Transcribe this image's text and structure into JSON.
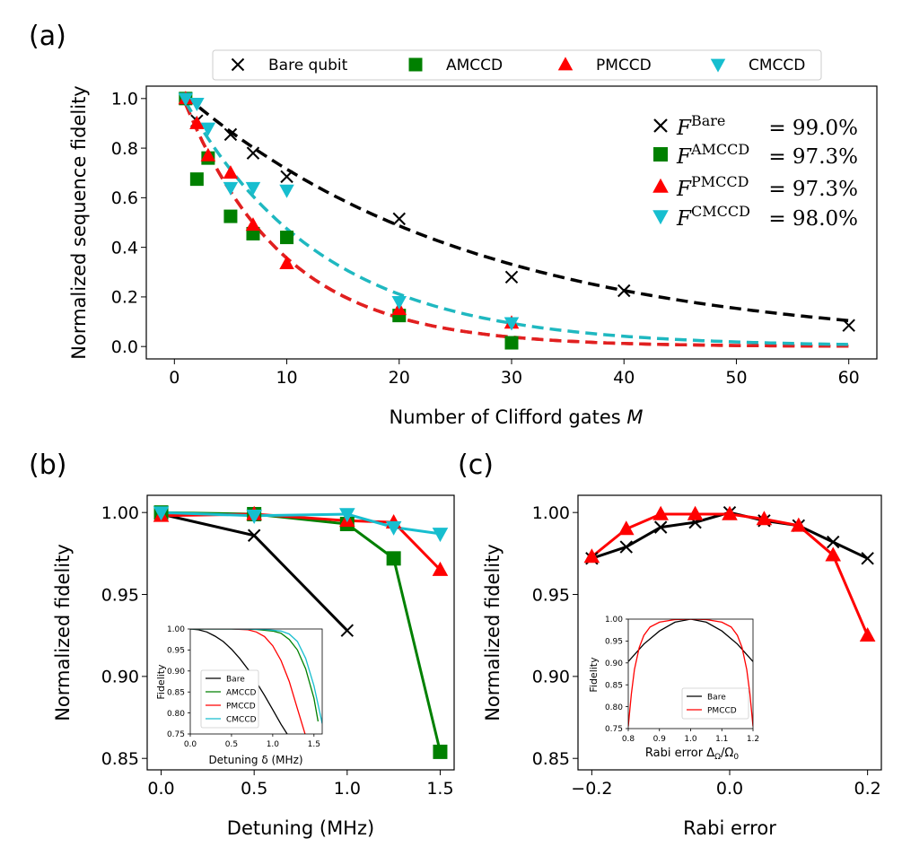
{
  "panel_labels": {
    "a": "(a)",
    "b": "(b)",
    "c": "(c)"
  },
  "colors": {
    "bare": "#000000",
    "amccd": "#008000",
    "pmccd": "#ff0000",
    "cmccd": "#17becf",
    "fit_cmccd": "#1fb8c0"
  },
  "chart_data": [
    {
      "id": "a",
      "type": "scatter",
      "xlabel": "Number of Clifford gates ",
      "xlabel_italic": "M",
      "ylabel": "Normalized sequence fidelity",
      "xlim": [
        -2.5,
        62.5
      ],
      "ylim": [
        -0.05,
        1.05
      ],
      "xticks": [
        0,
        10,
        20,
        30,
        40,
        50,
        60
      ],
      "xtick_labels": [
        "0",
        "10",
        "20",
        "30",
        "40",
        "50",
        "60"
      ],
      "yticks": [
        0,
        0.2,
        0.4,
        0.6,
        0.8,
        1.0
      ],
      "ytick_labels": [
        "0.0",
        "0.2",
        "0.4",
        "0.6",
        "0.8",
        "1.0"
      ],
      "legend_top": [
        {
          "series": "bare",
          "marker": "x",
          "label": "Bare qubit"
        },
        {
          "series": "amccd",
          "marker": "square",
          "label": "AMCCD"
        },
        {
          "series": "pmccd",
          "marker": "triangle-up",
          "label": "PMCCD"
        },
        {
          "series": "cmccd",
          "marker": "triangle-down",
          "label": "CMCCD"
        }
      ],
      "fidelity_legend": [
        {
          "series": "bare",
          "marker": "x",
          "sup": "Bare",
          "value": "= 99.0%"
        },
        {
          "series": "amccd",
          "marker": "square",
          "sup": "AMCCD",
          "value": "= 97.3%"
        },
        {
          "series": "pmccd",
          "marker": "triangle-up",
          "sup": "PMCCD",
          "value": "= 97.3%"
        },
        {
          "series": "cmccd",
          "marker": "triangle-down",
          "sup": "CMCCD",
          "value": "= 98.0%"
        }
      ],
      "fidelity_symbol": "F",
      "fit_curves": [
        {
          "series": "bare",
          "amplitude": 1.05,
          "base": 0.9623,
          "color": "#000000"
        },
        {
          "series": "pmccd",
          "amplitude": 1.094,
          "base": 0.8939,
          "color": "#ff0000"
        },
        {
          "series": "amccd",
          "amplitude": 1.094,
          "base": 0.8939,
          "color": "#e02020"
        },
        {
          "series": "cmccd",
          "amplitude": 1.07,
          "base": 0.922,
          "color": "#1fb8c0"
        }
      ],
      "series": [
        {
          "name": "bare",
          "marker": "x",
          "x": [
            1,
            2,
            5,
            7,
            10,
            20,
            30,
            40,
            60
          ],
          "y": [
            1.0,
            0.91,
            0.855,
            0.78,
            0.685,
            0.515,
            0.28,
            0.225,
            0.085
          ]
        },
        {
          "name": "amccd",
          "marker": "square",
          "x": [
            1,
            2,
            3,
            5,
            7,
            10,
            20,
            30
          ],
          "y": [
            1.0,
            0.675,
            0.76,
            0.525,
            0.455,
            0.44,
            0.125,
            0.015
          ]
        },
        {
          "name": "pmccd",
          "marker": "triangle-up",
          "x": [
            1,
            2,
            3,
            5,
            7,
            10,
            20,
            30
          ],
          "y": [
            1.0,
            0.9,
            0.77,
            0.7,
            0.49,
            0.335,
            0.15,
            0.095
          ]
        },
        {
          "name": "cmccd",
          "marker": "triangle-down",
          "x": [
            1,
            2,
            3,
            5,
            7,
            10,
            20,
            30
          ],
          "y": [
            1.0,
            0.98,
            0.88,
            0.64,
            0.64,
            0.63,
            0.18,
            0.095
          ]
        }
      ]
    },
    {
      "id": "b",
      "type": "line",
      "xlabel": "Detuning (MHz)",
      "ylabel": "Normalized fidelity",
      "xlim": [
        -0.075,
        1.575
      ],
      "ylim": [
        0.843,
        1.0105
      ],
      "xticks": [
        0,
        0.5,
        1.0,
        1.5
      ],
      "xtick_labels": [
        "0.0",
        "0.5",
        "1.0",
        "1.5"
      ],
      "yticks": [
        0.85,
        0.9,
        0.95,
        1.0
      ],
      "ytick_labels": [
        "0.85",
        "0.90",
        "0.95",
        "1.00"
      ],
      "series": [
        {
          "name": "bare",
          "marker": "x",
          "x": [
            0,
            0.5,
            1.0
          ],
          "y": [
            0.999,
            0.986,
            0.928
          ]
        },
        {
          "name": "amccd",
          "marker": "square",
          "x": [
            0,
            0.5,
            1.0,
            1.25,
            1.5
          ],
          "y": [
            1.0,
            0.999,
            0.993,
            0.972,
            0.854
          ]
        },
        {
          "name": "pmccd",
          "marker": "triangle-up",
          "x": [
            0,
            0.5,
            1.0,
            1.25,
            1.5
          ],
          "y": [
            0.998,
            0.999,
            0.995,
            0.994,
            0.965
          ]
        },
        {
          "name": "cmccd",
          "marker": "triangle-down",
          "x": [
            0,
            0.5,
            1.0,
            1.25,
            1.5
          ],
          "y": [
            1.0,
            0.998,
            0.999,
            0.991,
            0.987
          ]
        }
      ],
      "inset": {
        "type": "line",
        "xlabel": "Detuning δ (MHz)",
        "ylabel": "Fidelity",
        "xlim": [
          0,
          1.6
        ],
        "ylim": [
          0.75,
          1.0
        ],
        "xticks": [
          0,
          0.5,
          1.0,
          1.5
        ],
        "xtick_labels": [
          "0.0",
          "0.5",
          "1.0",
          "1.5"
        ],
        "yticks": [
          0.75,
          0.8,
          0.85,
          0.9,
          0.95,
          1.0
        ],
        "ytick_labels": [
          "0.75",
          "0.80",
          "0.85",
          "0.90",
          "0.95",
          "1.00"
        ],
        "legend": [
          "Bare",
          "AMCCD",
          "PMCCD",
          "CMCCD"
        ],
        "curves": [
          {
            "name": "bare",
            "label": "Bare",
            "x": [
              0,
              0.1,
              0.2,
              0.3,
              0.4,
              0.5,
              0.6,
              0.7,
              0.8,
              0.9,
              1.0,
              1.1,
              1.2
            ],
            "y": [
              1.0,
              0.998,
              0.993,
              0.983,
              0.97,
              0.952,
              0.93,
              0.904,
              0.874,
              0.842,
              0.808,
              0.773,
              0.742
            ]
          },
          {
            "name": "amccd",
            "label": "AMCCD",
            "x": [
              0,
              0.5,
              0.8,
              1.0,
              1.1,
              1.2,
              1.3,
              1.4,
              1.5,
              1.55
            ],
            "y": [
              1.0,
              1.0,
              0.999,
              0.995,
              0.99,
              0.975,
              0.95,
              0.905,
              0.835,
              0.78
            ]
          },
          {
            "name": "pmccd",
            "label": "PMCCD",
            "x": [
              0,
              0.5,
              0.7,
              0.8,
              0.9,
              1.0,
              1.1,
              1.2,
              1.3,
              1.4
            ],
            "y": [
              1.0,
              1.0,
              0.998,
              0.993,
              0.982,
              0.96,
              0.925,
              0.875,
              0.81,
              0.745
            ]
          },
          {
            "name": "cmccd",
            "label": "CMCCD",
            "x": [
              0,
              0.5,
              0.9,
              1.1,
              1.2,
              1.3,
              1.4,
              1.5,
              1.6
            ],
            "y": [
              1.0,
              1.0,
              0.999,
              0.995,
              0.988,
              0.97,
              0.93,
              0.865,
              0.775
            ]
          }
        ]
      }
    },
    {
      "id": "c",
      "type": "line",
      "xlabel": "Rabi error",
      "ylabel": "Normalized fidelity",
      "xlim": [
        -0.22,
        0.22
      ],
      "ylim": [
        0.843,
        1.0105
      ],
      "xticks": [
        -0.2,
        0.0,
        0.2
      ],
      "xtick_labels": [
        "−0.2",
        "0.0",
        "0.2"
      ],
      "yticks": [
        0.85,
        0.9,
        0.95,
        1.0
      ],
      "ytick_labels": [
        "0.85",
        "0.90",
        "0.95",
        "1.00"
      ],
      "series": [
        {
          "name": "bare",
          "marker": "x",
          "x": [
            -0.2,
            -0.15,
            -0.1,
            -0.05,
            0,
            0.05,
            0.1,
            0.15,
            0.2
          ],
          "y": [
            0.972,
            0.979,
            0.991,
            0.994,
            1.0,
            0.995,
            0.992,
            0.982,
            0.972
          ]
        },
        {
          "name": "pmccd",
          "marker": "triangle-up",
          "x": [
            -0.2,
            -0.15,
            -0.1,
            -0.05,
            0,
            0.05,
            0.1,
            0.15,
            0.2
          ],
          "y": [
            0.973,
            0.99,
            0.999,
            0.999,
            0.999,
            0.996,
            0.992,
            0.974,
            0.925
          ]
        }
      ],
      "inset": {
        "type": "line",
        "xlabel": "Rabi error Δ",
        "xlabel_sub1": "Ω",
        "xlabel_mid": "/Ω",
        "xlabel_sub2": "0",
        "ylabel": "Fidelity",
        "xlim": [
          0.8,
          1.2
        ],
        "ylim": [
          0.75,
          1.0
        ],
        "xticks": [
          0.8,
          0.9,
          1.0,
          1.1,
          1.2
        ],
        "xtick_labels": [
          "0.8",
          "0.9",
          "1.0",
          "1.1",
          "1.2"
        ],
        "yticks": [
          0.75,
          0.8,
          0.85,
          0.9,
          0.95,
          1.0
        ],
        "ytick_labels": [
          "0.75",
          "0.80",
          "0.85",
          "0.90",
          "0.95",
          "1.00"
        ],
        "legend": [
          "Bare",
          "PMCCD"
        ],
        "curves": [
          {
            "name": "bare",
            "label": "Bare",
            "x": [
              0.8,
              0.85,
              0.9,
              0.95,
              1.0,
              1.05,
              1.1,
              1.15,
              1.2
            ],
            "y": [
              0.903,
              0.943,
              0.973,
              0.993,
              1.0,
              0.993,
              0.973,
              0.943,
              0.903
            ]
          },
          {
            "name": "pmccd",
            "label": "PMCCD",
            "x": [
              0.8,
              0.81,
              0.82,
              0.835,
              0.85,
              0.87,
              0.9,
              0.95,
              1.0,
              1.05,
              1.1,
              1.13,
              1.15,
              1.165,
              1.18,
              1.19,
              1.2
            ],
            "y": [
              0.755,
              0.83,
              0.885,
              0.935,
              0.963,
              0.982,
              0.993,
              0.999,
              1.0,
              0.999,
              0.993,
              0.982,
              0.963,
              0.935,
              0.885,
              0.83,
              0.755
            ]
          }
        ]
      }
    }
  ]
}
